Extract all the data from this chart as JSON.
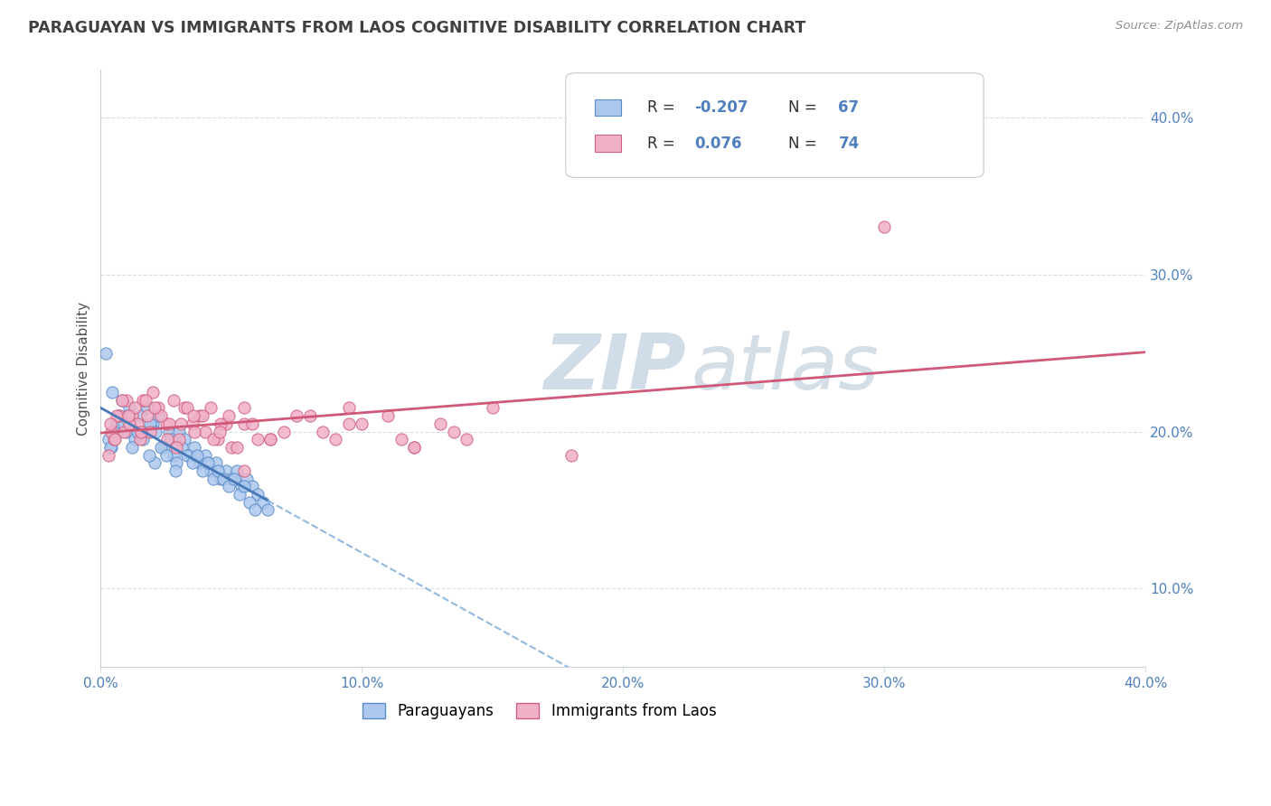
{
  "title": "PARAGUAYAN VS IMMIGRANTS FROM LAOS COGNITIVE DISABILITY CORRELATION CHART",
  "source": "Source: ZipAtlas.com",
  "ylabel": "Cognitive Disability",
  "x_tick_vals": [
    0.0,
    10.0,
    20.0,
    30.0,
    40.0
  ],
  "y_tick_vals_right": [
    10.0,
    20.0,
    30.0,
    40.0
  ],
  "legend_labels": [
    "Paraguayans",
    "Immigrants from Laos"
  ],
  "R_paraguayan": -0.207,
  "N_paraguayan": 67,
  "R_laos": 0.076,
  "N_laos": 74,
  "color_paraguayan_fill": "#adc8ee",
  "color_paraguayan_edge": "#5b8cc8",
  "color_laos_fill": "#f0b0c8",
  "color_laos_edge": "#d06080",
  "color_trend_paraguayan_solid": "#4878b8",
  "color_trend_paraguayan_dash": "#90b8e0",
  "color_trend_laos": "#d05878",
  "watermark_color": "#d0dce8",
  "background_color": "#ffffff",
  "title_color": "#404040",
  "source_color": "#909090",
  "axis_tick_color": "#5080c0",
  "grid_color": "#d8dde8",
  "par_x": [
    0.4,
    0.6,
    0.8,
    1.0,
    1.1,
    1.3,
    1.5,
    1.7,
    1.8,
    2.0,
    2.2,
    2.4,
    2.6,
    2.8,
    3.0,
    3.2,
    3.4,
    3.6,
    3.8,
    4.0,
    4.2,
    4.4,
    4.6,
    4.8,
    5.0,
    5.2,
    5.4,
    5.6,
    5.8,
    6.0,
    6.2,
    6.4,
    0.3,
    0.5,
    0.7,
    0.9,
    1.2,
    1.4,
    1.6,
    1.9,
    2.1,
    2.3,
    2.5,
    2.7,
    2.9,
    3.1,
    3.3,
    3.5,
    3.7,
    3.9,
    4.1,
    4.3,
    4.5,
    4.7,
    4.9,
    5.1,
    5.3,
    5.5,
    5.7,
    5.9,
    0.2,
    0.45,
    1.05,
    2.05,
    0.35,
    2.85,
    1.85
  ],
  "par_y": [
    19.0,
    20.5,
    22.0,
    20.0,
    21.5,
    19.5,
    21.0,
    20.0,
    21.5,
    20.5,
    21.0,
    19.0,
    20.0,
    18.5,
    20.0,
    19.5,
    18.5,
    19.0,
    18.0,
    18.5,
    17.5,
    18.0,
    17.0,
    17.5,
    17.0,
    17.5,
    16.5,
    17.0,
    16.5,
    16.0,
    15.5,
    15.0,
    19.5,
    20.0,
    21.0,
    20.5,
    19.0,
    20.0,
    19.5,
    20.5,
    20.0,
    19.0,
    18.5,
    19.5,
    18.0,
    19.0,
    18.5,
    18.0,
    18.5,
    17.5,
    18.0,
    17.0,
    17.5,
    17.0,
    16.5,
    17.0,
    16.0,
    16.5,
    15.5,
    15.0,
    25.0,
    22.5,
    21.0,
    18.0,
    19.0,
    17.5,
    18.5
  ],
  "laos_x": [
    0.3,
    0.5,
    0.7,
    0.9,
    1.0,
    1.2,
    1.4,
    1.6,
    1.8,
    2.0,
    2.2,
    2.5,
    2.8,
    3.0,
    3.2,
    3.5,
    3.8,
    4.0,
    4.2,
    4.5,
    4.8,
    5.0,
    5.5,
    6.0,
    7.0,
    8.0,
    9.0,
    10.0,
    11.0,
    12.0,
    13.0,
    14.0,
    15.0,
    0.4,
    0.6,
    0.8,
    1.1,
    1.3,
    1.5,
    1.7,
    1.9,
    2.3,
    2.6,
    2.9,
    3.3,
    3.6,
    3.9,
    4.3,
    4.6,
    4.9,
    5.2,
    5.8,
    6.5,
    7.5,
    8.5,
    9.5,
    11.5,
    13.5,
    0.35,
    0.55,
    1.05,
    1.55,
    2.05,
    2.55,
    3.05,
    3.55,
    4.55,
    5.5,
    6.5,
    9.5,
    12.0,
    30.0,
    5.5,
    18.0
  ],
  "laos_y": [
    18.5,
    19.5,
    21.0,
    20.0,
    22.0,
    21.0,
    20.5,
    22.0,
    21.0,
    22.5,
    21.5,
    20.5,
    22.0,
    19.5,
    21.5,
    20.5,
    21.0,
    20.0,
    21.5,
    19.5,
    20.5,
    19.0,
    20.5,
    19.5,
    20.0,
    21.0,
    19.5,
    20.5,
    21.0,
    19.0,
    20.5,
    19.5,
    21.5,
    20.0,
    21.0,
    22.0,
    20.5,
    21.5,
    19.5,
    22.0,
    20.0,
    21.0,
    20.5,
    19.0,
    21.5,
    20.0,
    21.0,
    19.5,
    20.5,
    21.0,
    19.0,
    20.5,
    19.5,
    21.0,
    20.0,
    21.5,
    19.5,
    20.0,
    20.5,
    19.5,
    21.0,
    20.0,
    21.5,
    19.5,
    20.5,
    21.0,
    20.0,
    21.5,
    19.5,
    20.5,
    19.0,
    33.0,
    17.5,
    18.5
  ]
}
